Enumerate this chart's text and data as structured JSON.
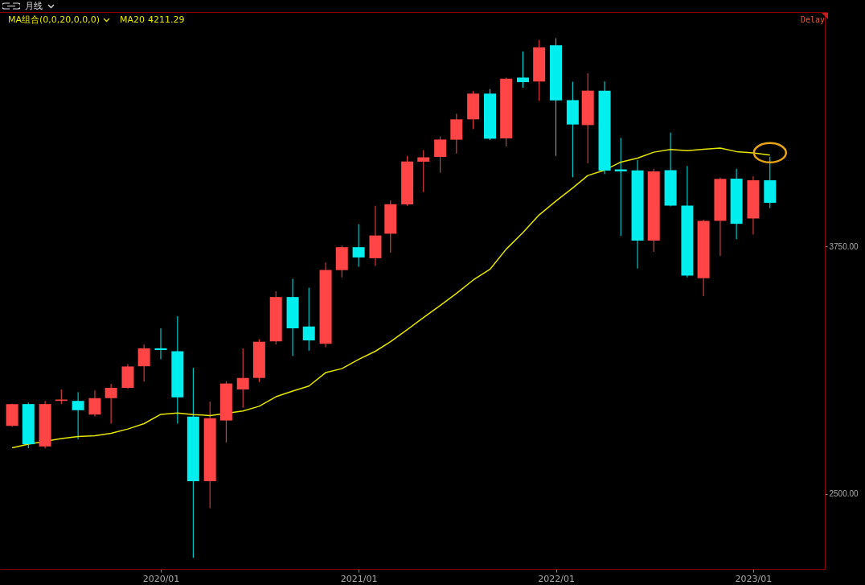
{
  "chart_data": {
    "type": "candlestick",
    "title": "月线",
    "subtitle": "MA组合(0,0,20,0,0,0)",
    "annotations": [
      "4211.29",
      "Delay"
    ],
    "x": [
      "2019-04",
      "2019-05",
      "2019-06",
      "2019-07",
      "2019-08",
      "2019-09",
      "2019-10",
      "2019-11",
      "2019-12",
      "2020-01",
      "2020-02",
      "2020-03",
      "2020-04",
      "2020-05",
      "2020-06",
      "2020-07",
      "2020-08",
      "2020-09",
      "2020-10",
      "2020-11",
      "2020-12",
      "2021-01",
      "2021-02",
      "2021-03",
      "2021-04",
      "2021-05",
      "2021-06",
      "2021-07",
      "2021-08",
      "2021-09",
      "2021-10",
      "2021-11",
      "2021-12",
      "2022-01",
      "2022-02",
      "2022-03",
      "2022-04",
      "2022-05",
      "2022-06",
      "2022-07",
      "2022-08",
      "2022-09",
      "2022-10",
      "2022-11",
      "2022-12",
      "2023-01",
      "2023-02"
    ],
    "ohlc": [
      [
        2843,
        2955,
        2838,
        2953
      ],
      [
        2953,
        2960,
        2730,
        2750
      ],
      [
        2739,
        2969,
        2729,
        2953
      ],
      [
        2969,
        3026,
        2953,
        2976
      ],
      [
        2969,
        3013,
        2775,
        2922
      ],
      [
        2900,
        3022,
        2890,
        2983
      ],
      [
        2983,
        3055,
        2854,
        3035
      ],
      [
        3035,
        3155,
        3030,
        3143
      ],
      [
        3144,
        3254,
        3067,
        3235
      ],
      [
        3235,
        3336,
        3179,
        3226
      ],
      [
        3220,
        3397,
        2854,
        2987
      ],
      [
        2890,
        3136,
        2176,
        2563
      ],
      [
        2563,
        2965,
        2427,
        2881
      ],
      [
        2870,
        3068,
        2759,
        3057
      ],
      [
        3027,
        3234,
        2935,
        3085
      ],
      [
        3085,
        3281,
        3064,
        3268
      ],
      [
        3270,
        3523,
        3254,
        3494
      ],
      [
        3494,
        3586,
        3196,
        3336
      ],
      [
        3345,
        3541,
        3223,
        3275
      ],
      [
        3258,
        3668,
        3240,
        3631
      ],
      [
        3630,
        3753,
        3593,
        3746
      ],
      [
        3746,
        3862,
        3647,
        3694
      ],
      [
        3690,
        3955,
        3651,
        3805
      ],
      [
        3814,
        3982,
        3718,
        3963
      ],
      [
        3962,
        4207,
        3955,
        4179
      ],
      [
        4178,
        4237,
        4024,
        4200
      ],
      [
        4202,
        4305,
        4122,
        4290
      ],
      [
        4289,
        4420,
        4219,
        4392
      ],
      [
        4392,
        4536,
        4343,
        4522
      ],
      [
        4522,
        4545,
        4287,
        4294
      ],
      [
        4296,
        4603,
        4255,
        4598
      ],
      [
        4603,
        4735,
        4552,
        4580
      ],
      [
        4583,
        4793,
        4485,
        4756
      ],
      [
        4766,
        4802,
        4207,
        4488
      ],
      [
        4489,
        4582,
        4099,
        4366
      ],
      [
        4363,
        4625,
        4170,
        4537
      ],
      [
        4537,
        4584,
        4115,
        4133
      ],
      [
        4139,
        4298,
        3803,
        4129
      ],
      [
        4134,
        4186,
        3638,
        3779
      ],
      [
        3779,
        4142,
        3722,
        4129
      ],
      [
        4135,
        4325,
        3952,
        3956
      ],
      [
        3956,
        4156,
        3593,
        3602
      ],
      [
        3589,
        3885,
        3498,
        3879
      ],
      [
        3879,
        4097,
        3702,
        4091
      ],
      [
        4092,
        4142,
        3786,
        3864
      ],
      [
        3891,
        4104,
        3810,
        4084
      ],
      [
        4084,
        4203,
        3943,
        3970
      ]
    ],
    "colors": [
      "#ff4545",
      "#00eeee",
      "#ff4545",
      "#ff4545",
      "#00eeee",
      "#ff4545",
      "#ff4545",
      "#ff4545",
      "#ff4545",
      "#00eeee",
      "#00eeee",
      "#00eeee",
      "#ff4545",
      "#ff4545",
      "#ff4545",
      "#ff4545",
      "#ff4545",
      "#00eeee",
      "#00eeee",
      "#ff4545",
      "#ff4545",
      "#00eeee",
      "#ff4545",
      "#ff4545",
      "#ff4545",
      "#ff4545",
      "#ff4545",
      "#ff4545",
      "#ff4545",
      "#00eeee",
      "#ff4545",
      "#00eeee",
      "#ff4545",
      "#00eeee",
      "#00eeee",
      "#ff4545",
      "#00eeee",
      "#00eeee",
      "#00eeee",
      "#ff4545",
      "#00eeee",
      "#00eeee",
      "#ff4545",
      "#ff4545",
      "#00eeee",
      "#ff4545",
      "#00eeee"
    ],
    "series": [
      {
        "name": "MA20",
        "type": "line",
        "color": "#e6e600",
        "values": [
          2732,
          2750,
          null,
          2779,
          2789,
          2793,
          2805,
          2827,
          2854,
          2901,
          2908,
          2900,
          2895,
          null,
          2918,
          2942,
          2990,
          3019,
          3044,
          3112,
          3132,
          3179,
          3220,
          3268,
          3329,
          3390,
          3451,
          3512,
          3580,
          3634,
          3736,
          3820,
          3909,
          3979,
          4045,
          4108,
          4135,
          4176,
          4196,
          4226,
          4240,
          4234,
          4241,
          4247,
          4229,
          4222,
          4211
        ]
      }
    ],
    "xlim": [
      "2019-03-17",
      "2023-05-06"
    ],
    "xticks": [
      {
        "value": "2020-01",
        "label": "2020/01"
      },
      {
        "value": "2021-01",
        "label": "2021/01"
      },
      {
        "value": "2022-01",
        "label": "2022/01"
      },
      {
        "value": "2023-01",
        "label": "2023/01"
      }
    ],
    "ylim": [
      2120,
      4930
    ],
    "yticks": [
      {
        "value": 2500,
        "label": "2500.00"
      },
      {
        "value": 3750,
        "label": "3750.00"
      }
    ],
    "legend": "top left"
  }
}
